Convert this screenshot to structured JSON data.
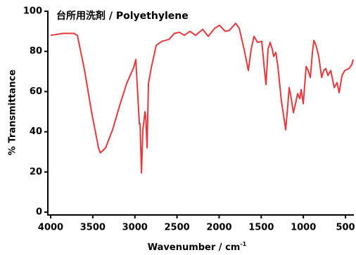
{
  "chart_data": {
    "type": "line",
    "title": "台所用洗剤 / Polyethylene",
    "xlabel": "Wavenumber / cm",
    "xlabel_superscript": "-1",
    "ylabel": "% Transmittance",
    "xlim": [
      4000,
      400
    ],
    "ylim": [
      0,
      100
    ],
    "xticks": [
      4000,
      3500,
      3000,
      2500,
      2000,
      1500,
      1000,
      500
    ],
    "yticks": [
      0,
      20,
      40,
      60,
      80,
      100
    ],
    "grid": false,
    "series": [
      {
        "color": "#e8383d",
        "x": [
          4000,
          3850,
          3724,
          3683,
          3599,
          3515,
          3432,
          3410,
          3348,
          3265,
          3181,
          3098,
          3014,
          2989,
          2964,
          2947,
          2938,
          2922,
          2905,
          2880,
          2872,
          2855,
          2839,
          2805,
          2747,
          2680,
          2596,
          2530,
          2471,
          2413,
          2346,
          2279,
          2195,
          2129,
          2053,
          1995,
          1928,
          1878,
          1803,
          1761,
          1703,
          1653,
          1620,
          1586,
          1544,
          1494,
          1469,
          1444,
          1419,
          1394,
          1369,
          1352,
          1327,
          1302,
          1260,
          1227,
          1210,
          1185,
          1168,
          1143,
          1118,
          1093,
          1068,
          1043,
          1026,
          1001,
          967,
          942,
          917,
          892,
          875,
          850,
          817,
          783,
          758,
          733,
          708,
          675,
          633,
          600,
          575,
          541,
          508,
          458,
          424,
          408
        ],
        "values": [
          88,
          89,
          89,
          88,
          71,
          50,
          32,
          29.5,
          32,
          41,
          53,
          64,
          72,
          76,
          57,
          44,
          44,
          19.5,
          41,
          50,
          48,
          32,
          64,
          72,
          83,
          85,
          86,
          89,
          89.5,
          88,
          90,
          88,
          91,
          87.5,
          91.5,
          93,
          90,
          90.5,
          94,
          91.5,
          81,
          70.5,
          81,
          87.5,
          84.5,
          85,
          74,
          63.5,
          81,
          84.5,
          81,
          77.5,
          79.5,
          72.5,
          55,
          46,
          41,
          53,
          62,
          56.5,
          49.5,
          54,
          59,
          56.5,
          61,
          54,
          72.5,
          70.5,
          67,
          79.5,
          85.5,
          83,
          77.5,
          67,
          70.5,
          71.5,
          68,
          70.5,
          62,
          64.5,
          59.5,
          68,
          70.5,
          71.5,
          73.5,
          76
        ]
      }
    ]
  }
}
